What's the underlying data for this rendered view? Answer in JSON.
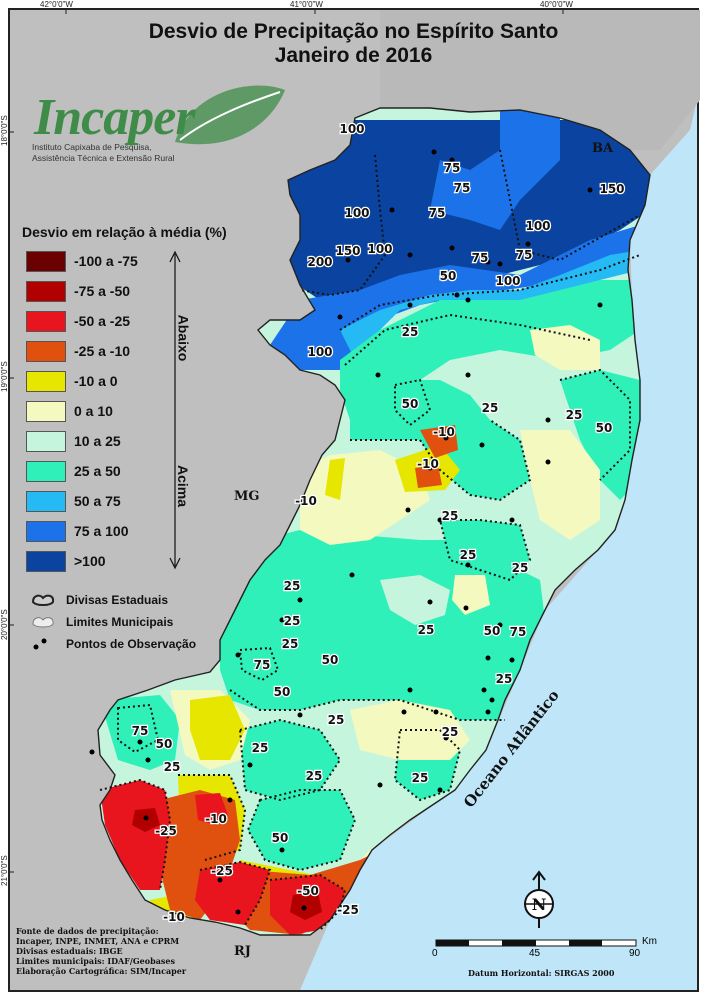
{
  "title_line1": "Desvio de Precipitação no Espírito Santo",
  "title_line2": "Janeiro de 2016",
  "coords": {
    "lon": [
      "42°0'0\"W",
      "41°0'0\"W",
      "40°0'0\"W"
    ],
    "lat": [
      "18°0'0\"S",
      "19°0'0\"S",
      "20°0'0\"S",
      "21°0'0\"S"
    ]
  },
  "logo": {
    "word": "Incaper",
    "sub1": "Instituto Capixaba de Pesquisa,",
    "sub2": "Assistência Técnica e Extensão Rural"
  },
  "legend": {
    "title": "Desvio em relação à média (%)",
    "items": [
      {
        "label": "-100 a -75",
        "color": "#6b0000"
      },
      {
        "label": "-75 a -50",
        "color": "#b00000"
      },
      {
        "label": "-50 a -25",
        "color": "#e8141e"
      },
      {
        "label": "-25 a -10",
        "color": "#e0500e"
      },
      {
        "label": "-10 a 0",
        "color": "#e6e600"
      },
      {
        "label": "0 a 10",
        "color": "#f3f9bf"
      },
      {
        "label": "10 a 25",
        "color": "#c6f5de"
      },
      {
        "label": "25 a 50",
        "color": "#2ef0b8"
      },
      {
        "label": "50 a 75",
        "color": "#25baf3"
      },
      {
        "label": "75 a 100",
        "color": "#1c72e8"
      },
      {
        "label": ">100",
        "color": "#0a43a0"
      }
    ],
    "below_label": "Abaixo",
    "above_label": "Acima",
    "divisas_estaduais": "Divisas Estaduais",
    "limites_municipais": "Limites Municipais",
    "pontos": "Pontos de Observação"
  },
  "states": {
    "ba": "BA",
    "mg": "MG",
    "rj": "RJ"
  },
  "ocean": "Oceano Atlântico",
  "isolines": [
    {
      "label": "100"
    },
    {
      "label": "75"
    },
    {
      "label": "75"
    },
    {
      "label": "150"
    },
    {
      "label": "100"
    },
    {
      "label": "75"
    },
    {
      "label": "100"
    },
    {
      "label": "150"
    },
    {
      "label": "100"
    },
    {
      "label": "200"
    },
    {
      "label": "75"
    },
    {
      "label": "75"
    },
    {
      "label": "100"
    },
    {
      "label": "50"
    },
    {
      "label": "25"
    },
    {
      "label": "100"
    },
    {
      "label": "50"
    },
    {
      "label": "25"
    },
    {
      "label": "25"
    },
    {
      "label": "50"
    },
    {
      "label": "-10"
    },
    {
      "label": "-10"
    },
    {
      "label": "-10"
    },
    {
      "label": "25"
    },
    {
      "label": "25"
    },
    {
      "label": "25"
    },
    {
      "label": "25"
    },
    {
      "label": "25"
    },
    {
      "label": "25"
    },
    {
      "label": "25"
    },
    {
      "label": "50"
    },
    {
      "label": "75"
    },
    {
      "label": "75"
    },
    {
      "label": "50"
    },
    {
      "label": "50"
    },
    {
      "label": "25"
    },
    {
      "label": "25"
    },
    {
      "label": "75"
    },
    {
      "label": "50"
    },
    {
      "label": "25"
    },
    {
      "label": "25"
    },
    {
      "label": "25"
    },
    {
      "label": "25"
    },
    {
      "label": "50"
    },
    {
      "label": "-25"
    },
    {
      "label": "-10"
    },
    {
      "label": "-25"
    },
    {
      "label": "-50"
    },
    {
      "label": "-25"
    },
    {
      "label": "-10"
    },
    {
      "label": "25"
    }
  ],
  "sources": [
    "Fonte de dados de precipitação:",
    "Incaper, INPE, INMET, ANA e CPRM",
    "Divisas estaduais: IBGE",
    "Limites municipais: IDAF/Geobases",
    "Elaboração Cartográfica: SIM/Incaper"
  ],
  "scale": {
    "unit": "Km",
    "ticks": [
      "0",
      "45",
      "90"
    ]
  },
  "datum": "Datum Horizontal: SIRGAS 2000",
  "north_label": "N"
}
